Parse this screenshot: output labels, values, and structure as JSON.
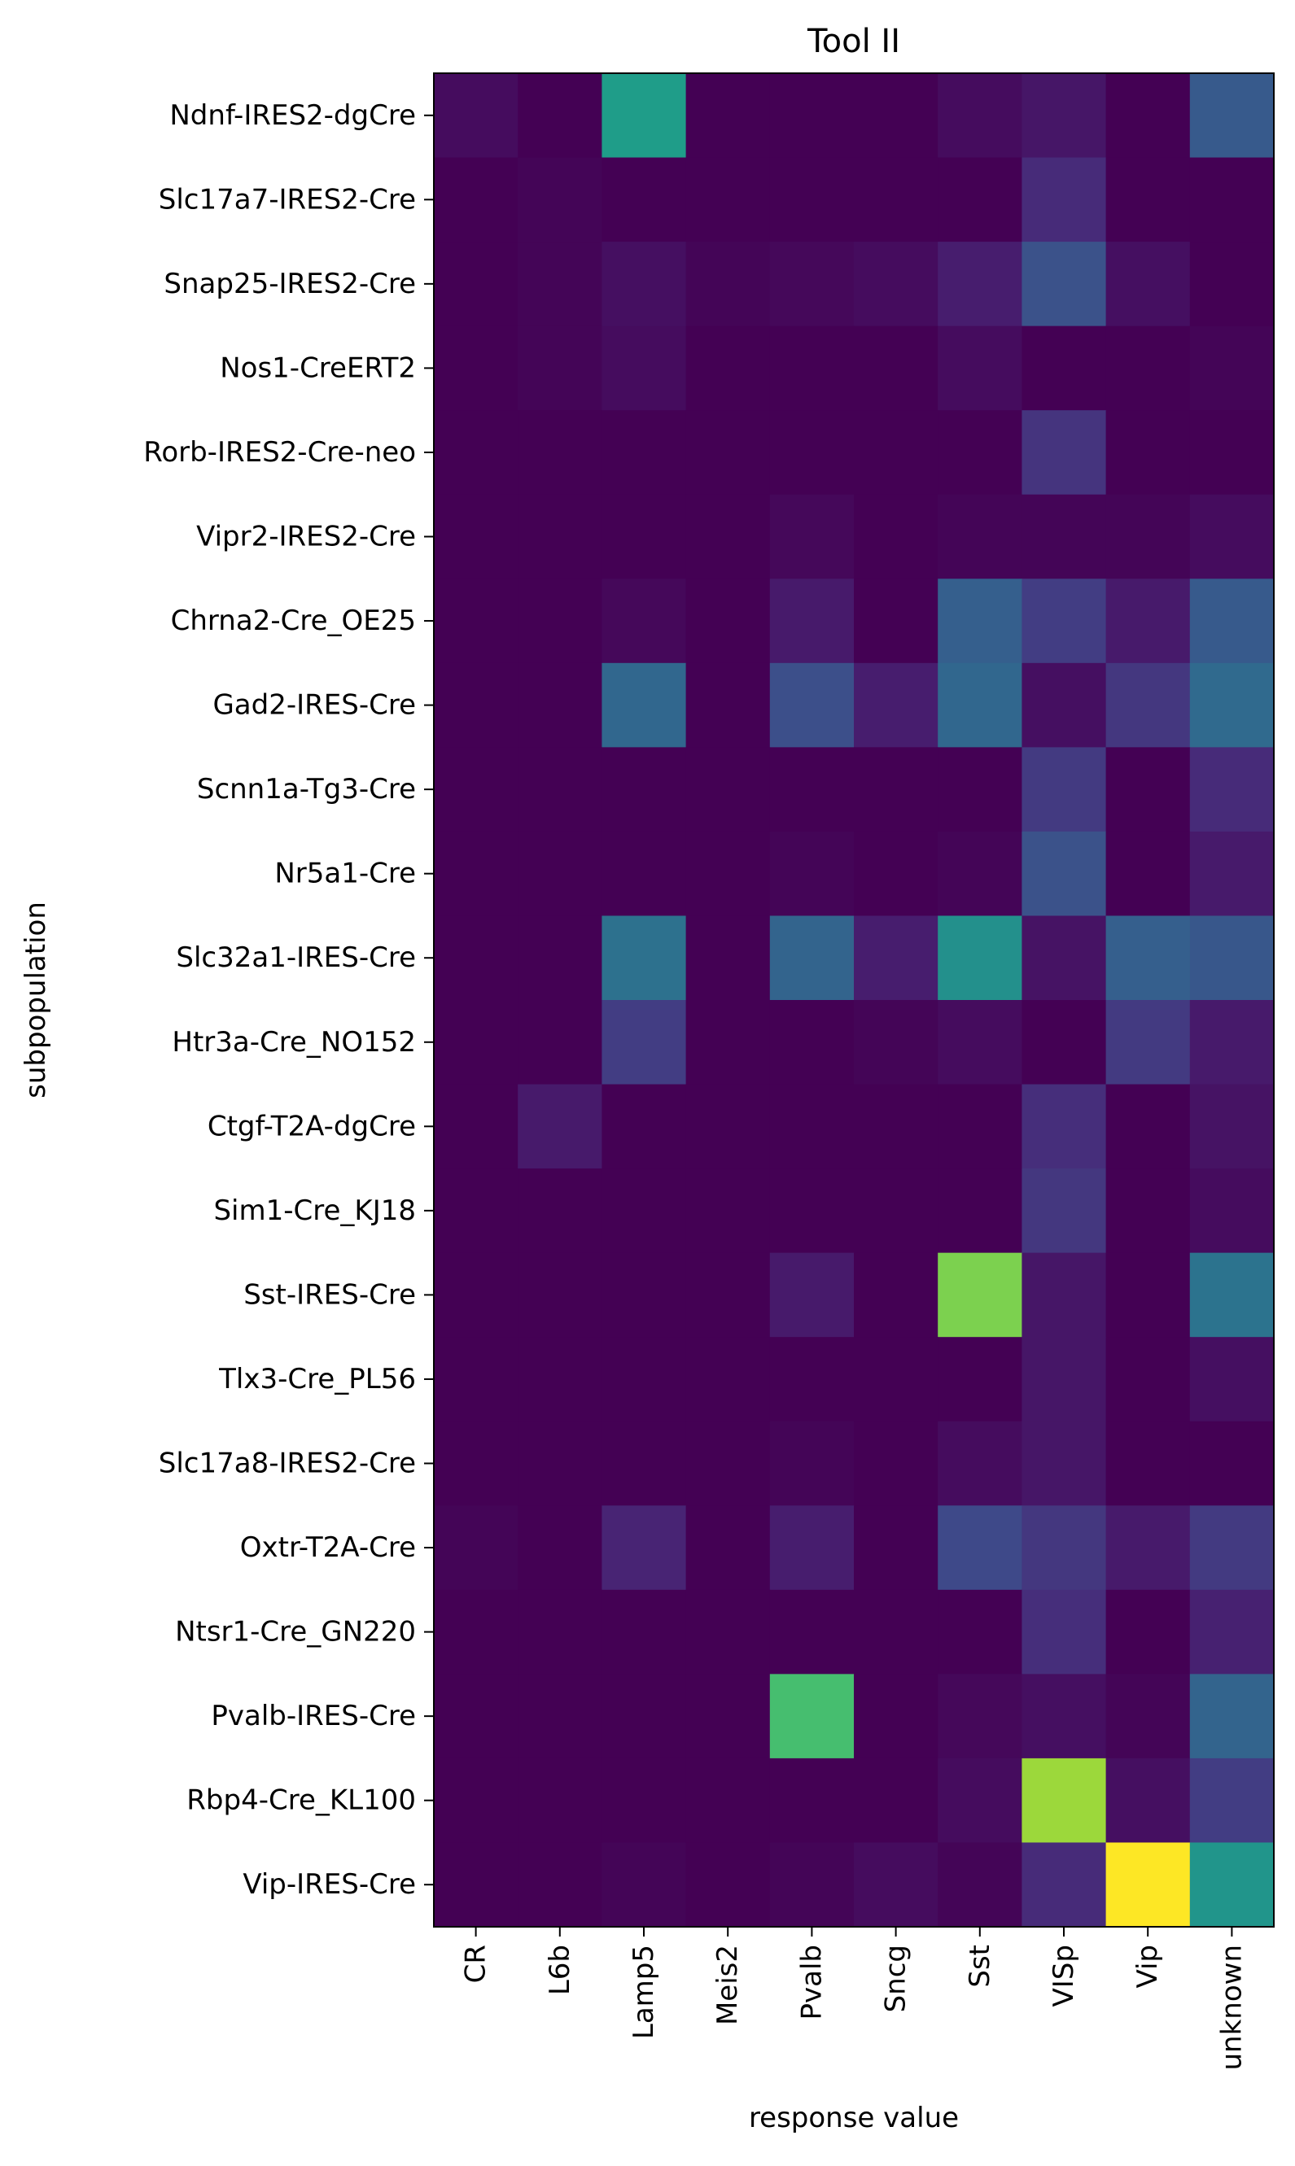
{
  "chart_data": {
    "type": "heatmap",
    "title": "Tool II",
    "xlabel": "response value",
    "ylabel": "subpopulation",
    "colormap": "viridis",
    "value_range": [
      0,
      1
    ],
    "x_categories": [
      "CR",
      "L6b",
      "Lamp5",
      "Meis2",
      "Pvalb",
      "Sncg",
      "Sst",
      "VISp",
      "Vip",
      "unknown"
    ],
    "y_categories": [
      "Ndnf-IRES2-dgCre",
      "Slc17a7-IRES2-Cre",
      "Snap25-IRES2-Cre",
      "Nos1-CreERT2",
      "Rorb-IRES2-Cre-neo",
      "Vipr2-IRES2-Cre",
      "Chrna2-Cre_OE25",
      "Gad2-IRES-Cre",
      "Scnn1a-Tg3-Cre",
      "Nr5a1-Cre",
      "Slc32a1-IRES-Cre",
      "Htr3a-Cre_NO152",
      "Ctgf-T2A-dgCre",
      "Sim1-Cre_KJ18",
      "Sst-IRES-Cre",
      "Tlx3-Cre_PL56",
      "Slc17a8-IRES2-Cre",
      "Oxtr-T2A-Cre",
      "Ntsr1-Cre_GN220",
      "Pvalb-IRES-Cre",
      "Rbp4-Cre_KL100",
      "Vip-IRES-Cre"
    ],
    "values": [
      [
        0.03,
        0.0,
        0.55,
        0.0,
        0.0,
        0.0,
        0.03,
        0.06,
        0.0,
        0.28
      ],
      [
        0.0,
        0.01,
        0.0,
        0.0,
        0.0,
        0.0,
        0.0,
        0.12,
        0.0,
        0.0
      ],
      [
        0.0,
        0.01,
        0.04,
        0.01,
        0.02,
        0.03,
        0.08,
        0.25,
        0.04,
        0.0
      ],
      [
        0.0,
        0.01,
        0.03,
        0.0,
        0.0,
        0.0,
        0.03,
        0.0,
        0.0,
        0.01
      ],
      [
        0.0,
        0.0,
        0.0,
        0.0,
        0.0,
        0.0,
        0.0,
        0.15,
        0.0,
        0.0
      ],
      [
        0.0,
        0.0,
        0.0,
        0.0,
        0.02,
        0.0,
        0.01,
        0.01,
        0.01,
        0.03
      ],
      [
        0.0,
        0.0,
        0.02,
        0.0,
        0.07,
        0.0,
        0.3,
        0.18,
        0.07,
        0.28
      ],
      [
        0.0,
        0.0,
        0.33,
        0.0,
        0.24,
        0.08,
        0.33,
        0.04,
        0.16,
        0.34
      ],
      [
        0.0,
        0.0,
        0.0,
        0.0,
        0.0,
        0.0,
        0.0,
        0.17,
        0.0,
        0.12
      ],
      [
        0.0,
        0.0,
        0.0,
        0.0,
        0.01,
        0.0,
        0.01,
        0.25,
        0.0,
        0.07
      ],
      [
        0.0,
        0.0,
        0.37,
        0.0,
        0.32,
        0.08,
        0.5,
        0.05,
        0.3,
        0.27
      ],
      [
        0.0,
        0.0,
        0.18,
        0.0,
        0.0,
        0.01,
        0.03,
        0.0,
        0.17,
        0.07
      ],
      [
        0.0,
        0.07,
        0.0,
        0.0,
        0.0,
        0.0,
        0.0,
        0.13,
        0.0,
        0.05
      ],
      [
        0.0,
        0.0,
        0.0,
        0.0,
        0.0,
        0.0,
        0.0,
        0.16,
        0.0,
        0.03
      ],
      [
        0.0,
        0.0,
        0.0,
        0.0,
        0.07,
        0.0,
        0.8,
        0.06,
        0.0,
        0.38
      ],
      [
        0.0,
        0.0,
        0.0,
        0.0,
        0.0,
        0.0,
        0.0,
        0.06,
        0.0,
        0.04
      ],
      [
        0.0,
        0.0,
        0.0,
        0.0,
        0.01,
        0.0,
        0.03,
        0.06,
        0.0,
        0.0
      ],
      [
        0.01,
        0.0,
        0.1,
        0.0,
        0.08,
        0.0,
        0.22,
        0.16,
        0.07,
        0.17
      ],
      [
        0.0,
        0.0,
        0.0,
        0.0,
        0.0,
        0.0,
        0.0,
        0.13,
        0.0,
        0.09
      ],
      [
        0.0,
        0.0,
        0.0,
        0.0,
        0.7,
        0.0,
        0.02,
        0.04,
        0.01,
        0.32
      ],
      [
        0.0,
        0.0,
        0.0,
        0.0,
        0.0,
        0.0,
        0.03,
        0.85,
        0.04,
        0.18
      ],
      [
        0.0,
        0.0,
        0.01,
        0.0,
        0.01,
        0.03,
        0.01,
        0.12,
        1.0,
        0.52
      ]
    ]
  }
}
